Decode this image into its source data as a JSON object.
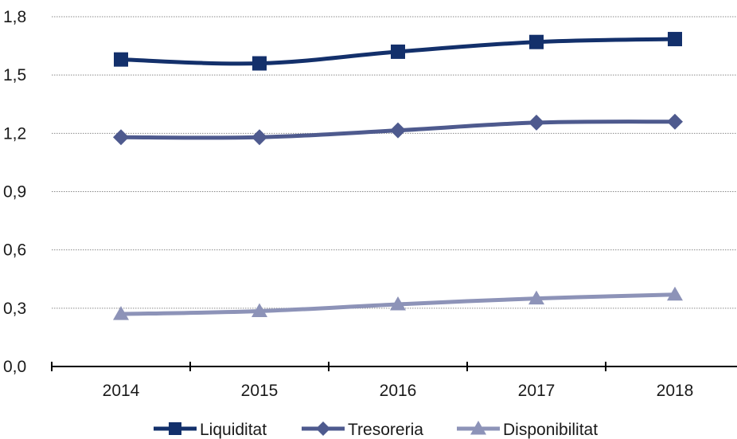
{
  "chart_data": {
    "type": "line",
    "categories": [
      "2014",
      "2015",
      "2016",
      "2017",
      "2018"
    ],
    "series": [
      {
        "name": "Liquiditat",
        "values": [
          1.58,
          1.56,
          1.62,
          1.67,
          1.685
        ],
        "color": "#13306b",
        "marker": "square"
      },
      {
        "name": "Tresoreria",
        "values": [
          1.18,
          1.18,
          1.215,
          1.255,
          1.26
        ],
        "color": "#4e5a8e",
        "marker": "diamond"
      },
      {
        "name": "Disponibilitat",
        "values": [
          0.27,
          0.285,
          0.32,
          0.35,
          0.37
        ],
        "color": "#8d93b8",
        "marker": "triangle"
      }
    ],
    "yticks": [
      "0,0",
      "0,3",
      "0,6",
      "0,9",
      "1,2",
      "1,5",
      "1,8"
    ],
    "ylim": [
      0,
      1.8
    ],
    "grid": "horizontal-dotted",
    "legend": "bottom",
    "title": "",
    "xlabel": "",
    "ylabel": ""
  }
}
